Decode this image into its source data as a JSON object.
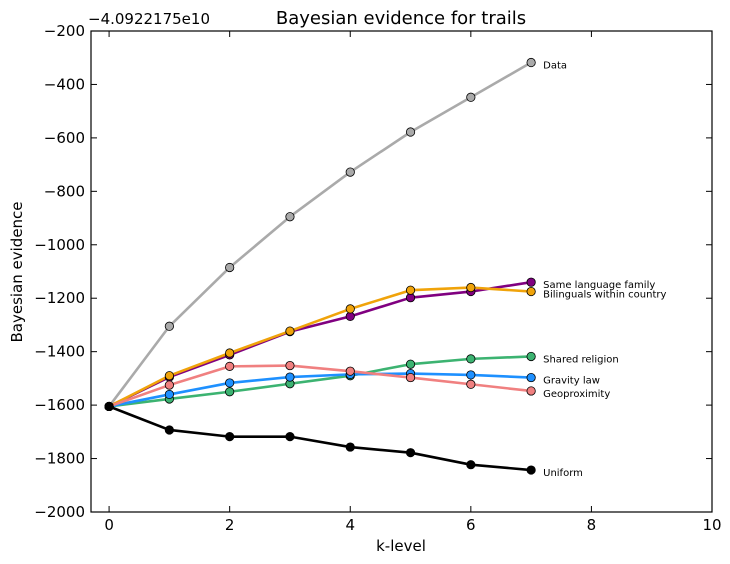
{
  "chart_data": {
    "type": "line",
    "title": "Bayesian evidence for trails",
    "xlabel": "k-level",
    "ylabel": "Bayesian evidence",
    "offset_text": "−4.0922175e10",
    "xlim": [
      -0.3,
      10
    ],
    "ylim": [
      -2000,
      -200
    ],
    "xticks": [
      0,
      2,
      4,
      6,
      8,
      10
    ],
    "yticks": [
      -2000,
      -1800,
      -1600,
      -1400,
      -1200,
      -1000,
      -800,
      -600,
      -400,
      -200
    ],
    "xtick_labels": [
      "0",
      "2",
      "4",
      "6",
      "8",
      "10"
    ],
    "ytick_labels": [
      "−2000",
      "−1800",
      "−1600",
      "−1400",
      "−1200",
      "−1000",
      "−800",
      "−600",
      "−400",
      "−200"
    ],
    "grid": false,
    "legend": "inline labels at line ends",
    "x": [
      0,
      1,
      2,
      3,
      4,
      5,
      6,
      7
    ],
    "series": [
      {
        "name": "Data",
        "color": "#aaaaaa",
        "values": [
          -1605,
          -1305,
          -1085,
          -895,
          -728,
          -578,
          -448,
          -318
        ]
      },
      {
        "name": "Same language family",
        "color": "#800080",
        "values": [
          -1605,
          -1495,
          -1412,
          -1325,
          -1268,
          -1198,
          -1175,
          -1140
        ]
      },
      {
        "name": "Bilinguals within country",
        "color": "#f0a30a",
        "values": [
          -1605,
          -1490,
          -1405,
          -1323,
          -1240,
          -1170,
          -1160,
          -1175
        ]
      },
      {
        "name": "Shared religion",
        "color": "#3cb371",
        "values": [
          -1605,
          -1577,
          -1550,
          -1520,
          -1490,
          -1447,
          -1427,
          -1418
        ]
      },
      {
        "name": "Gravity law",
        "color": "#1e90ff",
        "values": [
          -1605,
          -1560,
          -1517,
          -1495,
          -1485,
          -1482,
          -1487,
          -1497
        ]
      },
      {
        "name": "Geoproximity",
        "color": "#f08080",
        "values": [
          -1605,
          -1525,
          -1455,
          -1452,
          -1473,
          -1497,
          -1522,
          -1547
        ]
      },
      {
        "name": "Uniform",
        "color": "#000000",
        "values": [
          -1605,
          -1693,
          -1718,
          -1718,
          -1757,
          -1778,
          -1823,
          -1843
        ]
      }
    ]
  }
}
